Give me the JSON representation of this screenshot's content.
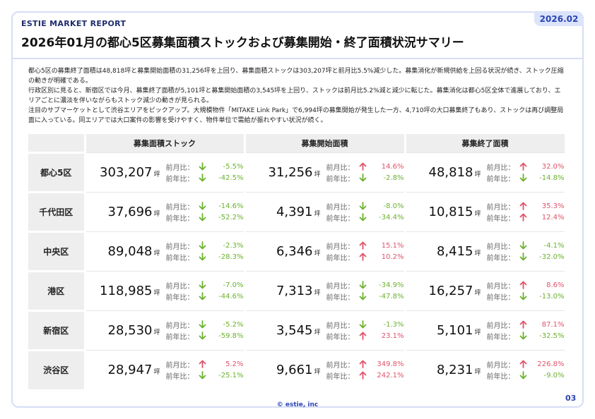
{
  "header": {
    "brand": "ESTIE MARKET REPORT",
    "date": "2026.02",
    "title": "2026年01月の都心5区募集面積ストックおよび募集開始・終了面積状況サマリー"
  },
  "summary": [
    "都心5区の募集終了面積は48,818坪と募集開始面積の31,256坪を上回り、募集面積ストックは303,207坪と前月比5.5%減少した。募集消化が新規供給を上回る状況が続き、ストック圧縮の動きが明確である。",
    "行政区別に見ると、新宿区では今月、募集終了面積が5,101坪と募集開始面積の3,545坪を上回り、ストックは前月比5.2%減と減少に転じた。募集消化は都心5区全体で進展しており、エリアごとに濃淡を伴いながらもストック減少の動きが見られる。",
    "注目のサブマーケットとして渋谷エリアをピックアップ。大規模物件「MITAKE Link Park」で6,994坪の募集開始が発生した一方、4,710坪の大口募集終了もあり、ストックは再び調整局面に入っている。同エリアでは大口案件の影響を受けやすく、物件単位で需給が振れやすい状況が続く。"
  ],
  "table": {
    "headers": [
      "募集面積ストック",
      "募集開始面積",
      "募集終了面積"
    ],
    "unit": "坪",
    "mom_label": "前月比：",
    "yoy_label": "前年比：",
    "colors": {
      "up": "#e0526a",
      "down": "#6bb22e"
    },
    "rows": [
      {
        "area": "都心5区",
        "cells": [
          {
            "value": "303,207",
            "mom": "-5.5%",
            "mom_dir": "down",
            "yoy": "-42.5%",
            "yoy_dir": "down"
          },
          {
            "value": "31,256",
            "mom": "14.6%",
            "mom_dir": "up",
            "yoy": "-2.8%",
            "yoy_dir": "down"
          },
          {
            "value": "48,818",
            "mom": "32.0%",
            "mom_dir": "up",
            "yoy": "-14.8%",
            "yoy_dir": "down"
          }
        ]
      },
      {
        "area": "千代田区",
        "cells": [
          {
            "value": "37,696",
            "mom": "-14.6%",
            "mom_dir": "down",
            "yoy": "-52.2%",
            "yoy_dir": "down"
          },
          {
            "value": "4,391",
            "mom": "-8.0%",
            "mom_dir": "down",
            "yoy": "-34.4%",
            "yoy_dir": "down"
          },
          {
            "value": "10,815",
            "mom": "35.3%",
            "mom_dir": "up",
            "yoy": "12.4%",
            "yoy_dir": "up"
          }
        ]
      },
      {
        "area": "中央区",
        "cells": [
          {
            "value": "89,048",
            "mom": "-2.3%",
            "mom_dir": "down",
            "yoy": "-28.3%",
            "yoy_dir": "down"
          },
          {
            "value": "6,346",
            "mom": "15.1%",
            "mom_dir": "up",
            "yoy": "10.2%",
            "yoy_dir": "up"
          },
          {
            "value": "8,415",
            "mom": "-4.1%",
            "mom_dir": "down",
            "yoy": "-32.0%",
            "yoy_dir": "down"
          }
        ]
      },
      {
        "area": "港区",
        "cells": [
          {
            "value": "118,985",
            "mom": "-7.0%",
            "mom_dir": "down",
            "yoy": "-44.6%",
            "yoy_dir": "down"
          },
          {
            "value": "7,313",
            "mom": "-34.9%",
            "mom_dir": "down",
            "yoy": "-47.8%",
            "yoy_dir": "down"
          },
          {
            "value": "16,257",
            "mom": "8.6%",
            "mom_dir": "up",
            "yoy": "-13.0%",
            "yoy_dir": "down"
          }
        ]
      },
      {
        "area": "新宿区",
        "cells": [
          {
            "value": "28,530",
            "mom": "-5.2%",
            "mom_dir": "down",
            "yoy": "-59.8%",
            "yoy_dir": "down"
          },
          {
            "value": "3,545",
            "mom": "-1.3%",
            "mom_dir": "down",
            "yoy": "23.1%",
            "yoy_dir": "up"
          },
          {
            "value": "5,101",
            "mom": "87.1%",
            "mom_dir": "up",
            "yoy": "-32.5%",
            "yoy_dir": "down"
          }
        ]
      },
      {
        "area": "渋谷区",
        "cells": [
          {
            "value": "28,947",
            "mom": "5.2%",
            "mom_dir": "up",
            "yoy": "-25.1%",
            "yoy_dir": "down"
          },
          {
            "value": "9,661",
            "mom": "349.8%",
            "mom_dir": "up",
            "yoy": "242.1%",
            "yoy_dir": "up"
          },
          {
            "value": "8,231",
            "mom": "226.8%",
            "mom_dir": "up",
            "yoy": "-9.0%",
            "yoy_dir": "down"
          }
        ]
      }
    ]
  },
  "footer": {
    "copyright": "© estie, inc",
    "page": "03"
  }
}
